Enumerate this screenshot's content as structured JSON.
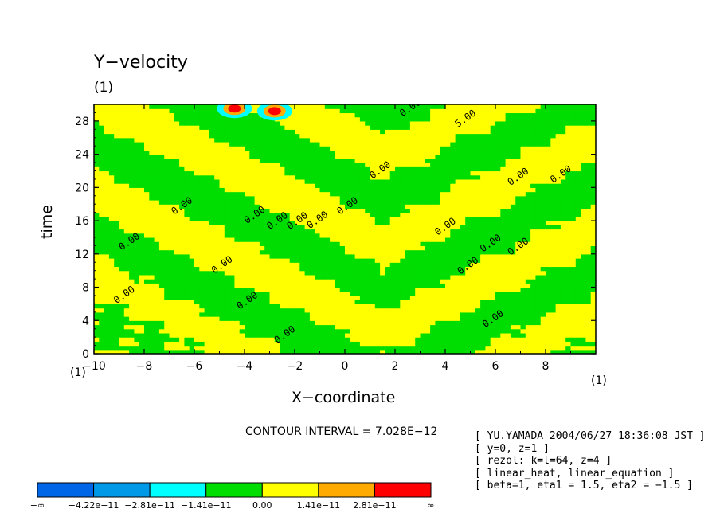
{
  "chart_data": {
    "type": "contour",
    "title": "Y−velocity",
    "title_sub": "(1)",
    "xlabel": "X−coordinate",
    "ylabel": "time",
    "x_unit_left": "(1)",
    "x_unit_right": "(1)",
    "xlim": [
      -10,
      10
    ],
    "ylim": [
      0,
      30
    ],
    "x_ticks": [
      -10,
      -8,
      -6,
      -4,
      -2,
      0,
      2,
      4,
      6,
      8
    ],
    "x_tick_labels": [
      "−10",
      "−8",
      "−6",
      "−4",
      "−2",
      "0",
      "2",
      "4",
      "6",
      "8"
    ],
    "y_ticks": [
      0,
      4,
      8,
      12,
      16,
      20,
      24,
      28
    ],
    "y_tick_labels": [
      "0",
      "4",
      "8",
      "12",
      "16",
      "20",
      "24",
      "28"
    ],
    "contour_interval": "CONTOUR INTERVAL = 7.028E−12",
    "contour_labels": [
      {
        "text": "0.00",
        "x": 2.3,
        "y": 28.5
      },
      {
        "text": "5.00",
        "x": 4.5,
        "y": 27.2
      },
      {
        "text": "0.00",
        "x": 1.1,
        "y": 21.0
      },
      {
        "text": "0.00",
        "x": 6.6,
        "y": 20.2
      },
      {
        "text": "0.00",
        "x": 8.3,
        "y": 20.5
      },
      {
        "text": "0.00",
        "x": -6.8,
        "y": 16.7
      },
      {
        "text": "0.00",
        "x": -3.9,
        "y": 15.6
      },
      {
        "text": "0.00",
        "x": -3.0,
        "y": 14.9
      },
      {
        "text": "0.00",
        "x": -2.2,
        "y": 14.9
      },
      {
        "text": "0.00",
        "x": -1.4,
        "y": 15.0
      },
      {
        "text": "0.00",
        "x": -0.2,
        "y": 16.7
      },
      {
        "text": "0.00",
        "x": 3.7,
        "y": 14.2
      },
      {
        "text": "0.00",
        "x": -8.9,
        "y": 12.4
      },
      {
        "text": "0.00",
        "x": 5.5,
        "y": 12.2
      },
      {
        "text": "0.00",
        "x": 6.6,
        "y": 11.8
      },
      {
        "text": "0.00",
        "x": -5.2,
        "y": 9.6
      },
      {
        "text": "0.00",
        "x": 4.6,
        "y": 9.5
      },
      {
        "text": "0.00",
        "x": -9.1,
        "y": 6.0
      },
      {
        "text": "0.00",
        "x": -4.2,
        "y": 5.3
      },
      {
        "text": "0.00",
        "x": 5.6,
        "y": 3.1
      },
      {
        "text": "0.00",
        "x": -2.7,
        "y": 1.2
      }
    ],
    "legend": {
      "colors": [
        "#0066e8",
        "#0099e8",
        "#00ffff",
        "#00dd00",
        "#ffff00",
        "#ffaa00",
        "#ff0000"
      ],
      "labels": [
        "−∞",
        "−4.22e−11",
        "−2.81e−11",
        "−1.41e−11",
        "0.00",
        "1.41e−11",
        "2.81e−11",
        "∞"
      ]
    }
  },
  "info_lines": [
    "[ YU.YAMADA 2004/06/27 18:36:08 JST ]",
    "[ y=0, z=1 ]",
    "[ rezol: k=l=64, z=4 ]",
    "[ linear_heat, linear_equation ]",
    "[ beta=1, eta1 = 1.5, eta2 = −1.5 ]"
  ]
}
